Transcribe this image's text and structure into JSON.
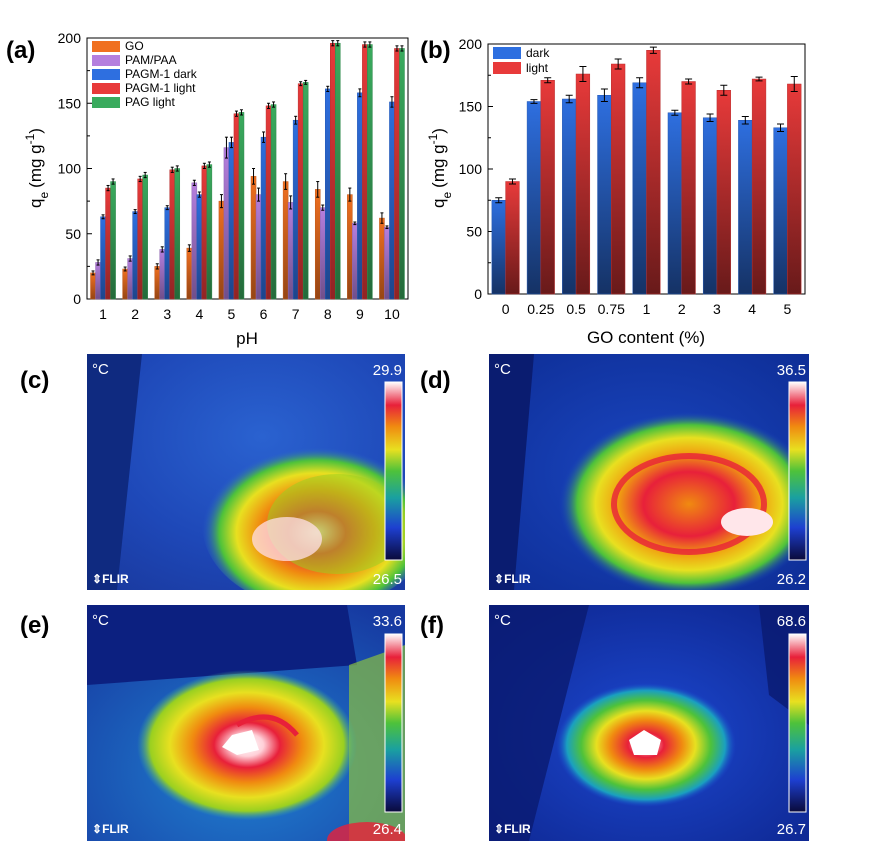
{
  "panel_labels": {
    "a": "(a)",
    "b": "(b)",
    "c": "(c)",
    "d": "(d)",
    "e": "(e)",
    "f": "(f)"
  },
  "colors": {
    "GO": "#f07020",
    "PAM/PAA": "#b57fde",
    "PAGM-1 dark": "#2e6fe0",
    "PAGM-1 light": "#e83a3a",
    "PAG light": "#3aab5e",
    "dark": "#2e6fe0",
    "light": "#e83a3a"
  },
  "chart_data": [
    {
      "id": "a",
      "type": "bar",
      "xlabel": "pH",
      "ylabel_main": "q",
      "ylabel_sub": "e",
      "ylabel_unit_pre": "(mg g",
      "ylabel_sup": "-1",
      "ylabel_unit_post": ")",
      "ylim": [
        0,
        200
      ],
      "yticks": [
        "0",
        "50",
        "100",
        "150",
        "200"
      ],
      "categories": [
        "1",
        "2",
        "3",
        "4",
        "5",
        "6",
        "7",
        "8",
        "9",
        "10"
      ],
      "legend_position": "top-left",
      "series": [
        {
          "name": "GO",
          "values": [
            20,
            23,
            25,
            39,
            75,
            94,
            90,
            84,
            80,
            62
          ],
          "errors": [
            1.5,
            1.5,
            2,
            2.5,
            5,
            6,
            6,
            6,
            5,
            4
          ]
        },
        {
          "name": "PAM/PAA",
          "values": [
            28,
            31,
            38,
            89,
            116,
            80,
            74,
            70,
            58,
            55
          ],
          "errors": [
            2,
            2,
            2,
            2,
            8,
            5,
            5,
            2,
            1,
            1
          ]
        },
        {
          "name": "PAGM-1 dark",
          "values": [
            63,
            67,
            70,
            80,
            120,
            124,
            137,
            161,
            158,
            151
          ],
          "errors": [
            1.5,
            1.5,
            1.5,
            2,
            4,
            4,
            3,
            2,
            3,
            4
          ]
        },
        {
          "name": "PAGM-1 light",
          "values": [
            85,
            92,
            99,
            102,
            142,
            148,
            165,
            196,
            195,
            192
          ],
          "errors": [
            2,
            2,
            2,
            2,
            2,
            2,
            1.5,
            2,
            2,
            2
          ]
        },
        {
          "name": "PAG light",
          "values": [
            90,
            95,
            100,
            103,
            143,
            149,
            166,
            196,
            195,
            192
          ],
          "errors": [
            2,
            2,
            2,
            2,
            2,
            2,
            1.5,
            2,
            2,
            2
          ]
        }
      ]
    },
    {
      "id": "b",
      "type": "bar",
      "xlabel": "GO content (%)",
      "ylabel_main": "q",
      "ylabel_sub": "e",
      "ylabel_unit_pre": "(mg g",
      "ylabel_sup": "-1",
      "ylabel_unit_post": ")",
      "ylim": [
        0,
        200
      ],
      "yticks": [
        "0",
        "50",
        "100",
        "150",
        "200"
      ],
      "categories": [
        "0",
        "0.25",
        "0.5",
        "0.75",
        "1",
        "2",
        "3",
        "4",
        "5"
      ],
      "legend_position": "top-left",
      "series": [
        {
          "name": "dark",
          "values": [
            75,
            154,
            156,
            159,
            169,
            145,
            141,
            139,
            133
          ],
          "errors": [
            2,
            1.5,
            3,
            5,
            4,
            2,
            3,
            3,
            3
          ]
        },
        {
          "name": "light",
          "values": [
            90,
            171,
            176,
            184,
            195,
            170,
            163,
            172,
            168
          ],
          "errors": [
            2,
            2,
            6,
            4,
            2.5,
            2,
            4,
            1.5,
            6
          ]
        }
      ]
    }
  ],
  "thermal_images": [
    {
      "id": "c",
      "unit": "°C",
      "max": "29.9",
      "min": "26.5",
      "brand": "FLIR"
    },
    {
      "id": "d",
      "unit": "°C",
      "max": "36.5",
      "min": "26.2",
      "brand": "FLIR"
    },
    {
      "id": "e",
      "unit": "°C",
      "max": "33.6",
      "min": "26.4",
      "brand": "FLIR"
    },
    {
      "id": "f",
      "unit": "°C",
      "max": "68.6",
      "min": "26.7",
      "brand": "FLIR"
    }
  ]
}
